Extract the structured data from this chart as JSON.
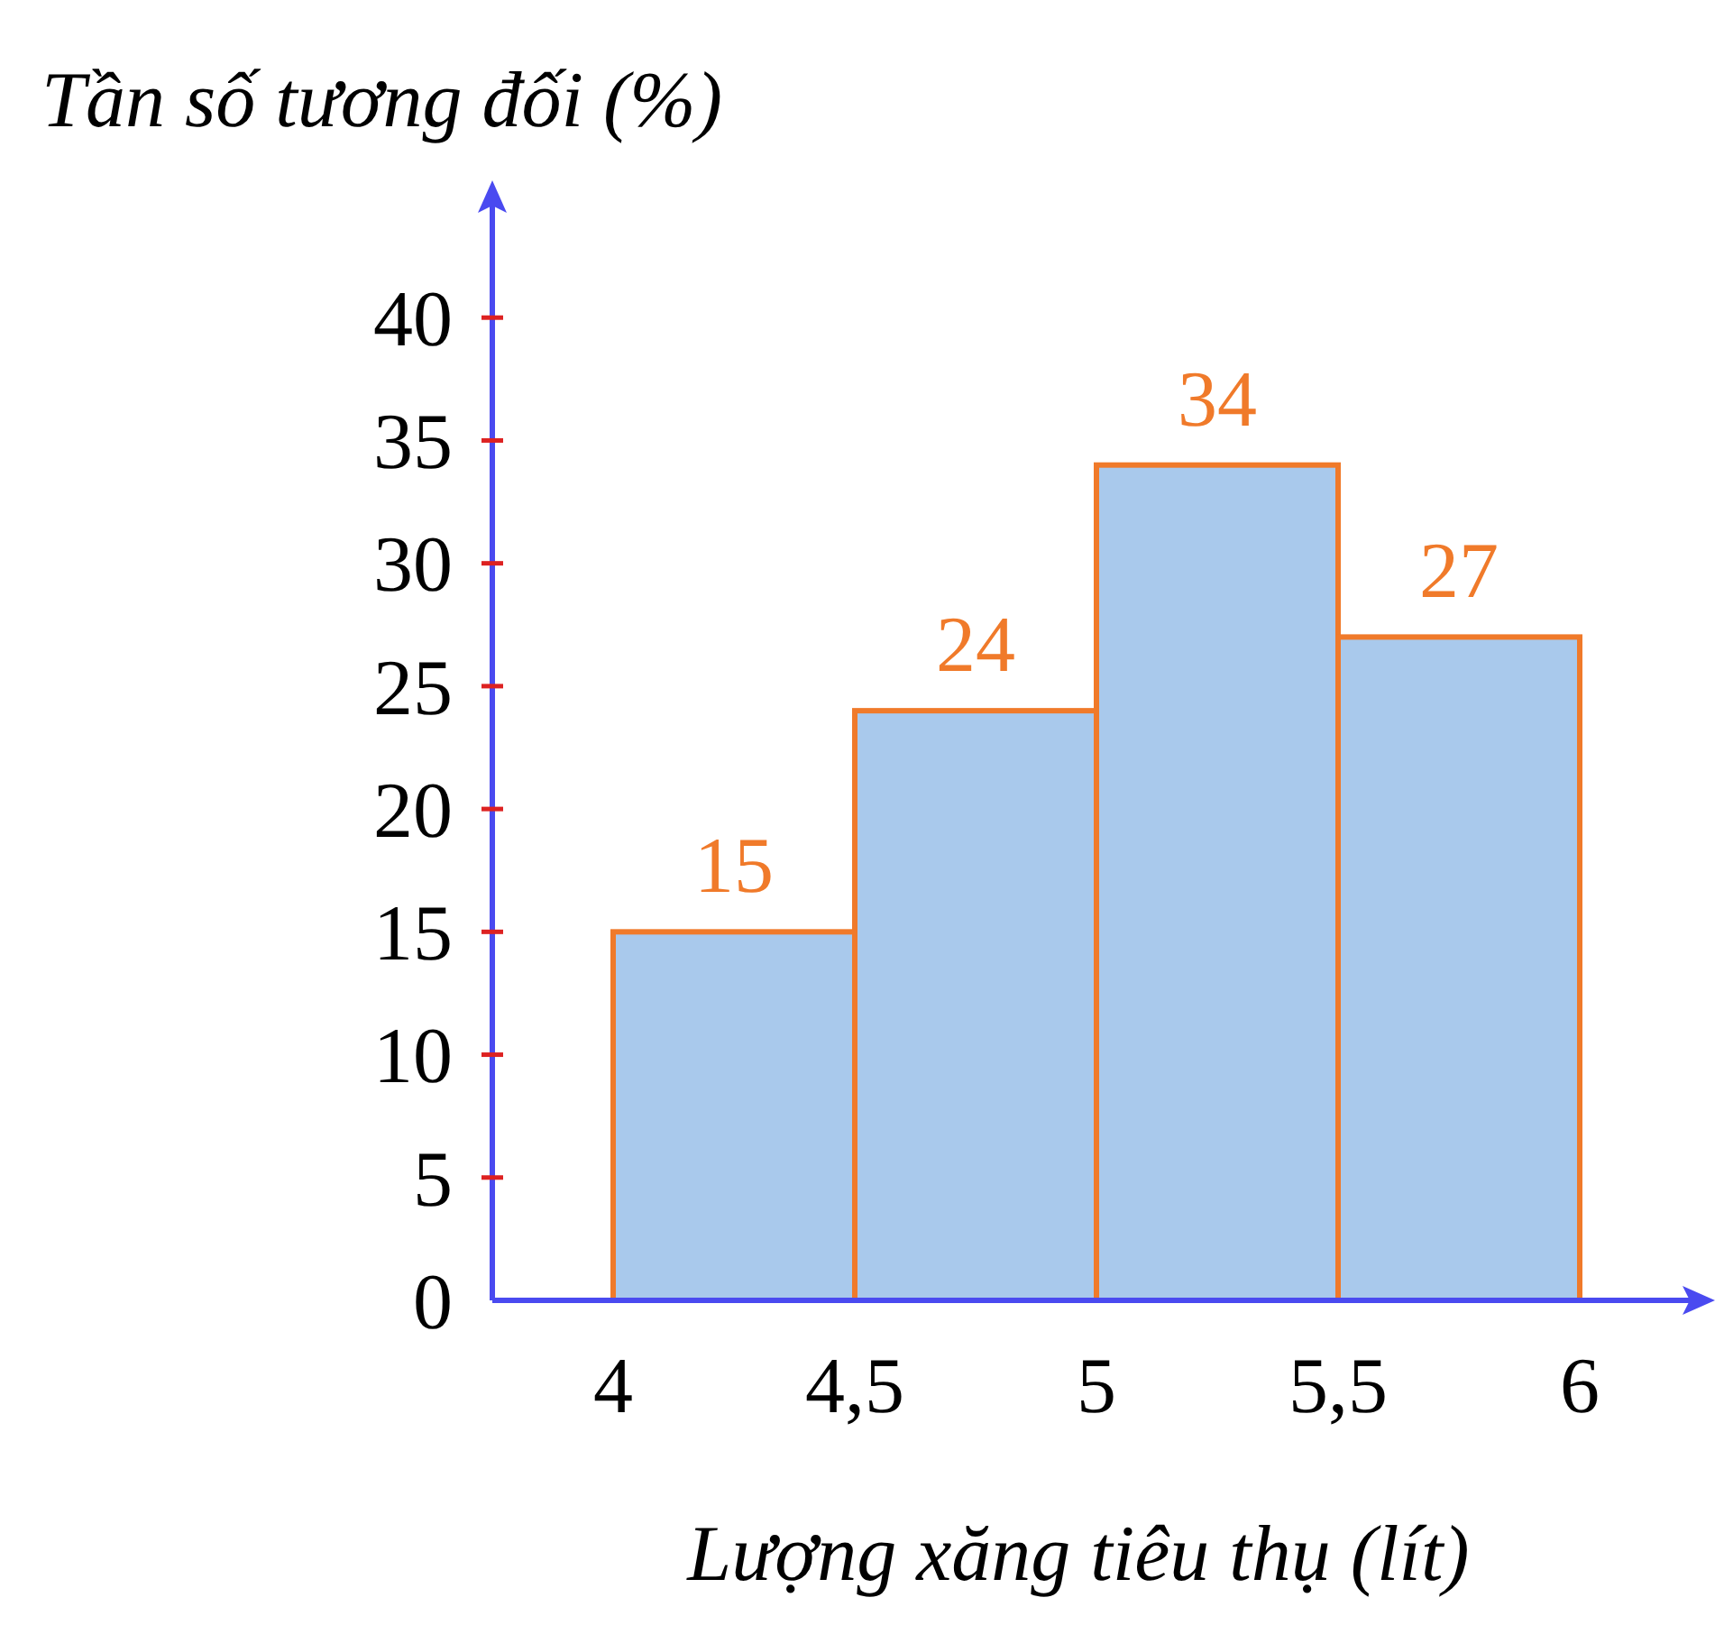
{
  "chart_data": {
    "type": "histogram",
    "xlabel": "Lượng xăng tiêu thụ (lít)",
    "ylabel": "Tần số tương đối (%)",
    "bins": [
      4,
      4.5,
      5,
      5.5,
      6
    ],
    "values": [
      15,
      24,
      34,
      27
    ],
    "color": "#a9c9ec",
    "data_labels": true,
    "xlim": [
      3.75,
      6.25
    ],
    "ylim": [
      0,
      45
    ],
    "xticks": [
      4,
      {
        "value": 4.5,
        "label": "4,5"
      },
      5,
      {
        "value": 5.5,
        "label": "5,5"
      },
      6
    ],
    "yticks": [
      0,
      5,
      10,
      15,
      20,
      25,
      30,
      35,
      40
    ]
  }
}
